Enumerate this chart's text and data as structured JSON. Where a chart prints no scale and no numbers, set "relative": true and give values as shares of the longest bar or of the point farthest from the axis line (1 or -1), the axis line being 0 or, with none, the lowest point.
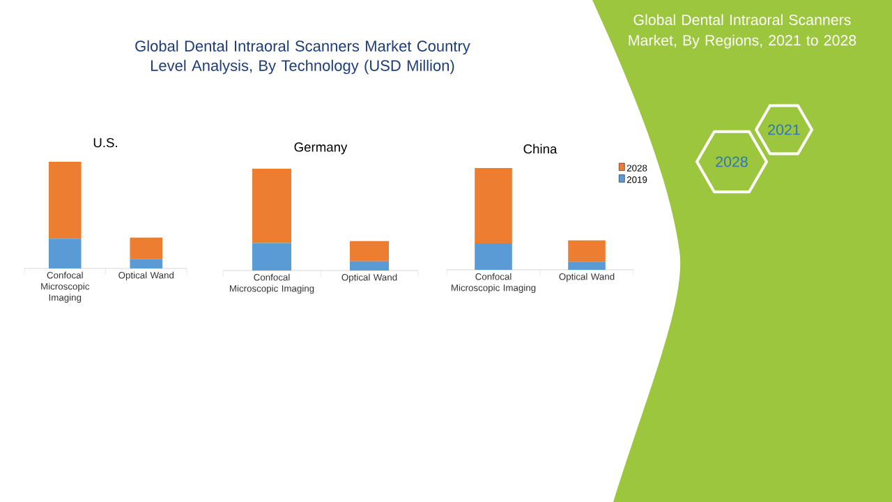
{
  "chart_data": [
    {
      "type": "other",
      "title": "Global Dental Intraoral Scanners Market Country Level Analysis, By Technology (USD Million)"
    },
    {
      "type": "bar",
      "title": "U.S.",
      "categories": [
        "Confocal Microscopic Imaging",
        "Optical Wand"
      ],
      "stacked": true,
      "relative": true,
      "legend": false,
      "series": [
        {
          "color": "#5b9bd5",
          "values": [
            0.28,
            0.09
          ]
        },
        {
          "color": "#ed7d31",
          "values": [
            0.72,
            0.2
          ]
        }
      ]
    },
    {
      "type": "bar",
      "title": "Germany",
      "categories": [
        "Confocal Microscopic Imaging",
        "Optical Wand"
      ],
      "stacked": true,
      "relative": true,
      "legend": false,
      "series": [
        {
          "color": "#5b9bd5",
          "values": [
            0.27,
            0.09
          ]
        },
        {
          "color": "#ed7d31",
          "values": [
            0.73,
            0.2
          ]
        }
      ]
    },
    {
      "type": "bar",
      "title": "China",
      "categories": [
        "Confocal Microscopic Imaging",
        "Optical Wand"
      ],
      "stacked": true,
      "relative": true,
      "legend": "top right",
      "series": [
        {
          "name": "2019",
          "color": "#5b9bd5",
          "values": [
            0.26,
            0.08
          ]
        },
        {
          "name": "2028",
          "color": "#ed7d31",
          "values": [
            0.74,
            0.21
          ]
        }
      ]
    },
    {
      "type": "other",
      "title": "Global Dental Intraoral Scanners Market, By Regions, 2021 to 2028",
      "annotations": [
        "2021",
        "2028"
      ]
    }
  ]
}
